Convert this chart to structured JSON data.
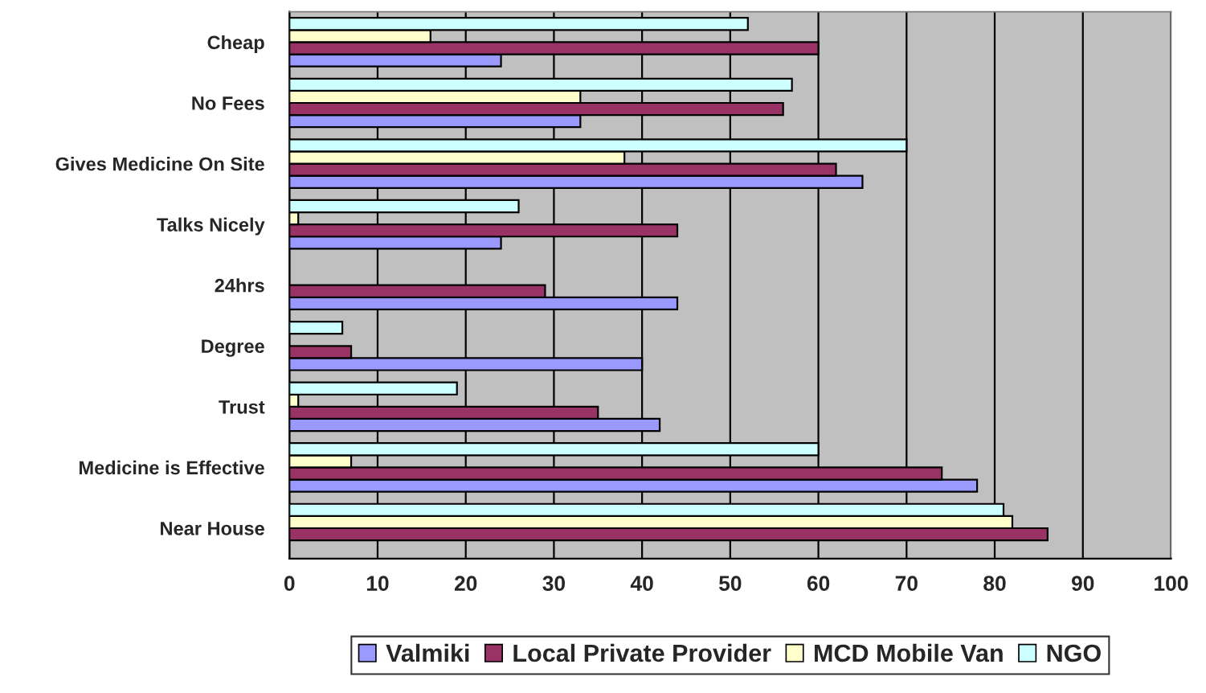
{
  "chart_data": {
    "type": "bar",
    "orientation": "horizontal",
    "categories": [
      "Cheap",
      "No Fees",
      "Gives Medicine On Site",
      "Talks Nicely",
      "24hrs",
      "Degree",
      "Trust",
      "Medicine is Effective",
      "Near House"
    ],
    "series": [
      {
        "name": "Valmiki",
        "color": "#9999ff",
        "values": [
          24,
          33,
          65,
          24,
          44,
          40,
          42,
          78,
          null
        ]
      },
      {
        "name": "Local Private Provider",
        "color": "#993366",
        "values": [
          60,
          56,
          62,
          44,
          29,
          7,
          35,
          74,
          86
        ]
      },
      {
        "name": "MCD Mobile Van",
        "color": "#ffffcc",
        "values": [
          16,
          33,
          38,
          1,
          null,
          null,
          1,
          7,
          82
        ]
      },
      {
        "name": "NGO",
        "color": "#ccffff",
        "values": [
          52,
          57,
          70,
          26,
          null,
          6,
          19,
          60,
          81
        ]
      }
    ],
    "xlim": [
      0,
      100
    ],
    "xticks": [
      0,
      10,
      20,
      30,
      40,
      50,
      60,
      70,
      80,
      90,
      100
    ],
    "grid": "x",
    "legend": "bottom"
  }
}
